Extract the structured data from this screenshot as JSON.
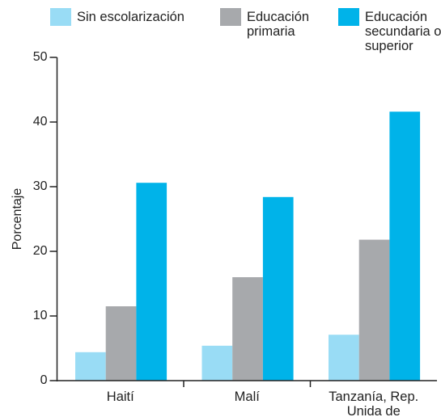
{
  "chart_data": {
    "type": "bar",
    "y_label": "Porcentaje",
    "categories": [
      "Haití",
      "Malí",
      "Tanzanía, Rep. Unida de"
    ],
    "series": [
      {
        "name": "Sin escolarización",
        "color": "#99dcf5",
        "values": [
          4.4,
          5.4,
          7.1
        ]
      },
      {
        "name": "Educación primaria",
        "color": "#a7a9ac",
        "values": [
          11.5,
          16.0,
          21.8
        ]
      },
      {
        "name": "Educación secundaria o superior",
        "color": "#00b3e9",
        "values": [
          30.6,
          28.4,
          41.6
        ]
      }
    ],
    "ylim": [
      0,
      50
    ],
    "yticks": [
      0,
      10,
      20,
      30,
      40,
      50
    ]
  }
}
